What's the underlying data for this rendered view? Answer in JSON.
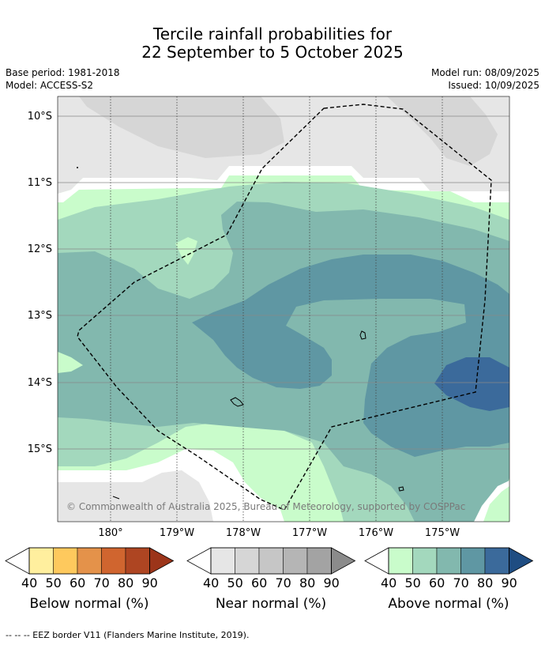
{
  "title": {
    "line1": "Tercile rainfall probabilities for",
    "line2": "22 September to 5 October 2025"
  },
  "meta": {
    "base_period": "Base period: 1981-2018",
    "model": "Model: ACCESS-S2",
    "model_run": "Model run: 08/09/2025",
    "issued": "Issued: 10/09/2025"
  },
  "map": {
    "lat_labels": [
      "10°S",
      "11°S",
      "12°S",
      "13°S",
      "14°S",
      "15°S"
    ],
    "lon_labels": [
      "180°",
      "179°W",
      "178°W",
      "177°W",
      "176°W",
      "175°W"
    ],
    "copyright": "© Commonwealth of Australia 2025, Bureau of Meteorology, supported by COSPPac"
  },
  "colorbars": [
    {
      "label": "Below normal (%)",
      "ticks": [
        "40",
        "50",
        "60",
        "70",
        "80",
        "90"
      ],
      "colors": [
        "#ffef9e",
        "#fec95d",
        "#e4924a",
        "#d0652f",
        "#ae4522",
        "#9c351a"
      ]
    },
    {
      "label": "Near normal (%)",
      "ticks": [
        "40",
        "50",
        "60",
        "70",
        "80",
        "90"
      ],
      "colors": [
        "#e6e6e6",
        "#d6d6d6",
        "#c6c6c6",
        "#b5b5b5",
        "#a3a3a3",
        "#8b8b8b"
      ]
    },
    {
      "label": "Above normal (%)",
      "ticks": [
        "40",
        "50",
        "60",
        "70",
        "80",
        "90"
      ],
      "colors": [
        "#c9fccb",
        "#a3d8bd",
        "#82b8ae",
        "#5f97a3",
        "#3b6a9b",
        "#1f4d82"
      ]
    }
  ],
  "footnote": "--  --  -- EEZ border V11 (Flanders Marine Institute, 2019)."
}
